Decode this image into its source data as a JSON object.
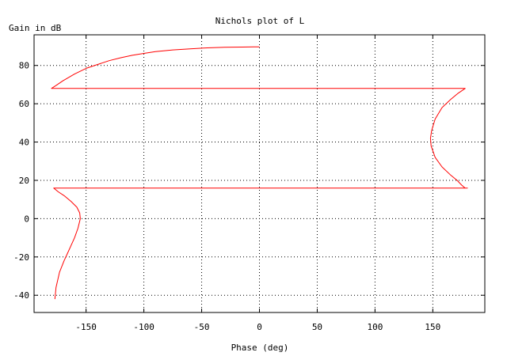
{
  "chart_data": {
    "type": "line",
    "title": "Nichols plot of L",
    "xlabel": "Phase (deg)",
    "ylabel": "Gain in dB",
    "xlim": [
      -195,
      195
    ],
    "ylim": [
      -49,
      96
    ],
    "xticks": [
      -150,
      -100,
      -50,
      0,
      50,
      100,
      150
    ],
    "yticks": [
      -40,
      -20,
      0,
      20,
      40,
      60,
      80
    ],
    "xtick_labels": [
      "-150",
      "-100",
      "-50",
      "0",
      "50",
      "100",
      "150"
    ],
    "ytick_labels": [
      "-40",
      "-20",
      "0",
      "20",
      "40",
      "60",
      "80"
    ],
    "grid": true,
    "line_color": "#ff0000",
    "series": [
      {
        "x": [
          -177,
          -176,
          -173,
          -169,
          -166,
          -163,
          -160,
          -157,
          -155,
          -155.5,
          -158,
          -163,
          -169,
          -174,
          -178,
          180,
          0,
          178,
          175,
          171,
          165,
          158,
          152,
          148.5,
          148,
          149,
          152,
          158,
          165,
          172,
          178,
          -180,
          -176,
          -170,
          -160,
          -150,
          -140,
          -130,
          -120,
          -110,
          -100,
          -90,
          -75,
          -60,
          -45,
          -30,
          -15,
          -5,
          0
        ],
        "y": [
          -42,
          -36,
          -28,
          -22,
          -18,
          -14,
          -10,
          -5,
          0,
          3,
          6,
          9,
          12,
          14,
          16,
          16,
          16,
          16,
          17.5,
          20,
          23,
          27,
          32,
          38,
          42,
          46,
          52,
          58,
          62,
          65.5,
          68,
          68,
          69.5,
          72,
          75.5,
          78.5,
          80.5,
          82.5,
          84,
          85.3,
          86.3,
          87.2,
          88.1,
          88.7,
          89.2,
          89.5,
          89.6,
          89.7,
          89.7
        ]
      }
    ]
  }
}
